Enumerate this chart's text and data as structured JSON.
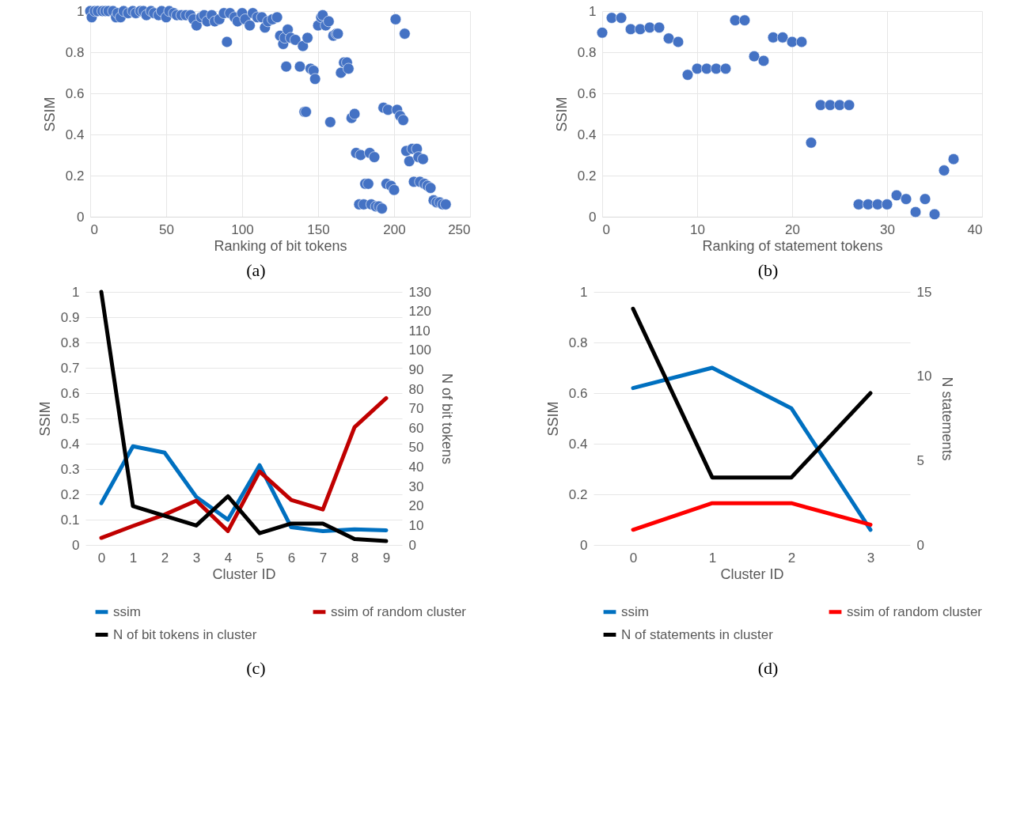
{
  "chart_data": [
    {
      "type": "scatter",
      "xlabel": "Ranking of bit tokens",
      "ylabel": "SSIM",
      "color": "#4472c4",
      "xlim": [
        0,
        250
      ],
      "xticks": [
        0,
        50,
        100,
        150,
        200,
        250
      ],
      "ylim": [
        0,
        1
      ],
      "yticks": [
        0,
        0.2,
        0.4,
        0.6,
        0.8,
        1
      ],
      "grid": true,
      "annotations": [
        "(a)"
      ],
      "x": [
        0,
        1,
        3,
        5,
        8,
        10,
        12,
        15,
        17,
        18,
        20,
        22,
        25,
        28,
        30,
        33,
        35,
        37,
        40,
        42,
        45,
        47,
        50,
        52,
        55,
        57,
        60,
        63,
        66,
        68,
        70,
        73,
        75,
        77,
        80,
        82,
        85,
        88,
        90,
        92,
        95,
        97,
        100,
        102,
        105,
        107,
        110,
        113,
        115,
        117,
        120,
        123,
        125,
        127,
        128,
        129,
        130,
        132,
        135,
        138,
        140,
        141,
        142,
        143,
        145,
        147,
        148,
        150,
        152,
        153,
        155,
        157,
        158,
        160,
        162,
        163,
        165,
        167,
        169,
        170,
        172,
        174,
        175,
        177,
        178,
        180,
        181,
        183,
        184,
        185,
        187,
        188,
        190,
        192,
        193,
        195,
        196,
        198,
        200,
        201,
        202,
        204,
        206,
        207,
        208,
        210,
        212,
        213,
        215,
        216,
        217,
        219,
        220,
        222,
        224,
        226,
        228,
        230,
        232,
        234
      ],
      "values": [
        1.0,
        0.97,
        1.0,
        1.0,
        1.0,
        1.0,
        1.0,
        1.0,
        0.97,
        0.99,
        0.97,
        1.0,
        0.99,
        1.0,
        0.99,
        1.0,
        1.0,
        0.98,
        1.0,
        0.99,
        0.98,
        1.0,
        0.97,
        1.0,
        0.99,
        0.98,
        0.98,
        0.98,
        0.98,
        0.96,
        0.93,
        0.97,
        0.98,
        0.95,
        0.98,
        0.95,
        0.96,
        0.99,
        0.85,
        0.99,
        0.97,
        0.95,
        0.99,
        0.96,
        0.93,
        0.99,
        0.97,
        0.97,
        0.92,
        0.95,
        0.96,
        0.97,
        0.88,
        0.84,
        0.87,
        0.73,
        0.91,
        0.87,
        0.86,
        0.73,
        0.83,
        0.51,
        0.51,
        0.87,
        0.72,
        0.71,
        0.67,
        0.93,
        0.97,
        0.98,
        0.93,
        0.95,
        0.46,
        0.88,
        0.89,
        0.89,
        0.7,
        0.75,
        0.75,
        0.72,
        0.48,
        0.5,
        0.31,
        0.06,
        0.3,
        0.06,
        0.16,
        0.16,
        0.31,
        0.06,
        0.29,
        0.05,
        0.05,
        0.04,
        0.53,
        0.16,
        0.52,
        0.15,
        0.13,
        0.96,
        0.52,
        0.49,
        0.47,
        0.89,
        0.32,
        0.27,
        0.33,
        0.17,
        0.33,
        0.29,
        0.17,
        0.28,
        0.16,
        0.15,
        0.14,
        0.08,
        0.07,
        0.07,
        0.06,
        0.06
      ]
    },
    {
      "type": "scatter",
      "xlabel": "Ranking of statement tokens",
      "ylabel": "SSIM",
      "color": "#4472c4",
      "xlim": [
        0,
        40
      ],
      "xticks": [
        0,
        10,
        20,
        30,
        40
      ],
      "ylim": [
        0,
        1
      ],
      "yticks": [
        0,
        0.2,
        0.4,
        0.6,
        0.8,
        1
      ],
      "grid": true,
      "annotations": [
        "(b)"
      ],
      "x": [
        0,
        1,
        2,
        3,
        4,
        5,
        6,
        7,
        8,
        9,
        10,
        11,
        12,
        13,
        14,
        15,
        16,
        17,
        18,
        19,
        20,
        21,
        22,
        23,
        24,
        25,
        26,
        27,
        28,
        29,
        30,
        31,
        32,
        33,
        34,
        35,
        36,
        37
      ],
      "values": [
        0.895,
        0.967,
        0.967,
        0.912,
        0.912,
        0.92,
        0.92,
        0.867,
        0.85,
        0.69,
        0.72,
        0.72,
        0.72,
        0.72,
        0.955,
        0.955,
        0.78,
        0.758,
        0.872,
        0.872,
        0.85,
        0.85,
        0.36,
        0.543,
        0.543,
        0.543,
        0.543,
        0.06,
        0.06,
        0.06,
        0.06,
        0.104,
        0.086,
        0.023,
        0.086,
        0.012,
        0.225,
        0.28
      ]
    },
    {
      "type": "line",
      "xlabel": "Cluster ID",
      "ylabel": "SSIM",
      "y2label": "N of bit tokens",
      "categories": [
        "0",
        "1",
        "2",
        "3",
        "4",
        "5",
        "6",
        "7",
        "8",
        "9"
      ],
      "ylim": [
        0,
        1
      ],
      "yticks": [
        0,
        0.1,
        0.2,
        0.3,
        0.4,
        0.5,
        0.6,
        0.7,
        0.8,
        0.9,
        1
      ],
      "y2lim": [
        0,
        130
      ],
      "y2ticks": [
        0,
        10,
        20,
        30,
        40,
        50,
        60,
        70,
        80,
        90,
        100,
        110,
        120,
        130
      ],
      "grid": "y",
      "legend": "bottom",
      "line_style": "solid",
      "annotations": [
        "(c)"
      ],
      "series": [
        {
          "name": "ssim",
          "color": "#0070c0",
          "values": [
            0.165,
            0.39,
            0.365,
            0.19,
            0.1,
            0.315,
            0.07,
            0.055,
            0.062,
            0.058
          ]
        },
        {
          "name": "ssim of random cluster",
          "color": "#c00000",
          "values": [
            0.028,
            0.075,
            0.12,
            0.175,
            0.055,
            0.29,
            0.178,
            0.14,
            0.465,
            0.58
          ]
        },
        {
          "name": "N of bit tokens in cluster",
          "color": "#000000",
          "axis": "y2",
          "values": [
            130,
            20,
            15,
            10,
            25,
            6,
            11,
            11,
            3,
            2
          ]
        }
      ]
    },
    {
      "type": "line",
      "xlabel": "Cluster ID",
      "ylabel": "SSIM",
      "y2label": "N statements",
      "categories": [
        "0",
        "1",
        "2",
        "3"
      ],
      "ylim": [
        0,
        1
      ],
      "yticks": [
        0,
        0.2,
        0.4,
        0.6,
        0.8,
        1
      ],
      "y2lim": [
        0,
        15
      ],
      "y2ticks": [
        0,
        5,
        10,
        15
      ],
      "grid": "y",
      "legend": "bottom",
      "line_style": "solid",
      "annotations": [
        "(d)"
      ],
      "series": [
        {
          "name": "ssim",
          "color": "#0070c0",
          "values": [
            0.62,
            0.7,
            0.54,
            0.06
          ]
        },
        {
          "name": "ssim of random cluster",
          "color": "#ff0000",
          "values": [
            0.06,
            0.165,
            0.165,
            0.08
          ]
        },
        {
          "name": "N of statements in cluster",
          "color": "#000000",
          "axis": "y2",
          "values": [
            14,
            4,
            4,
            9
          ]
        }
      ]
    }
  ]
}
